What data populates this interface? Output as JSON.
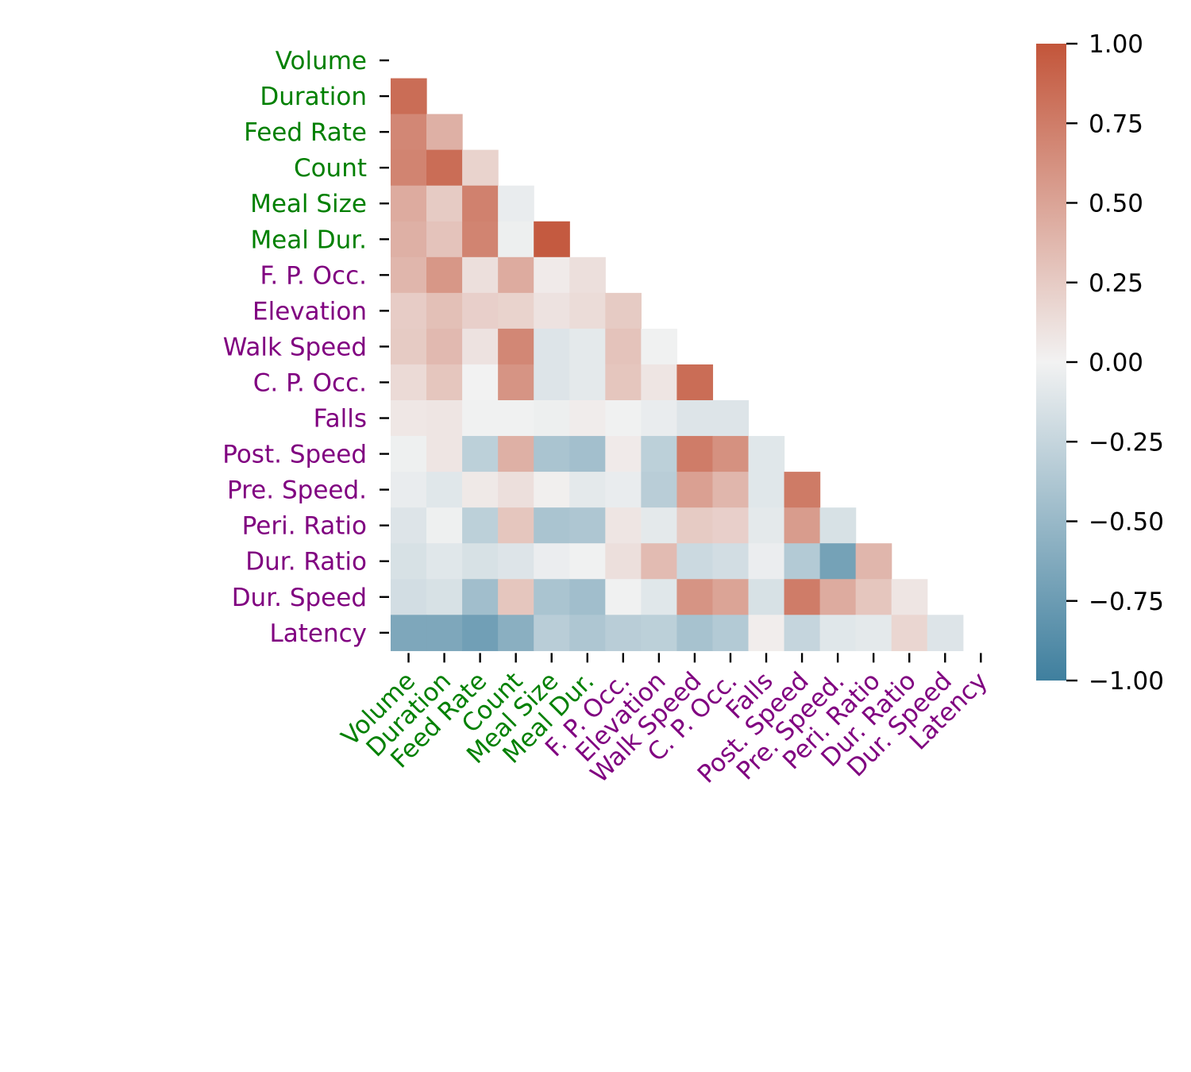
{
  "chart_data": {
    "type": "heatmap",
    "title": "",
    "xlabel": "",
    "ylabel": "",
    "variables": [
      "Volume",
      "Duration",
      "Feed Rate",
      "Count",
      "Meal Size",
      "Meal Dur.",
      "F. P. Occ.",
      "Elevation",
      "Walk Speed",
      "C. P. Occ.",
      "Falls",
      "Post. Speed",
      "Pre. Speed.",
      "Peri. Ratio",
      "Dur. Ratio",
      "Dur. Speed",
      "Latency"
    ],
    "label_groups": [
      "green",
      "green",
      "green",
      "green",
      "green",
      "green",
      "purple",
      "purple",
      "purple",
      "purple",
      "purple",
      "purple",
      "purple",
      "purple",
      "purple",
      "purple",
      "purple"
    ],
    "group_colors": {
      "green": "#008000",
      "purple": "#800080"
    },
    "mask": "upper triangle including diagonal",
    "matrix": [
      [],
      [
        0.85
      ],
      [
        0.68,
        0.42
      ],
      [
        0.7,
        0.85,
        0.2
      ],
      [
        0.45,
        0.25,
        0.72,
        -0.05
      ],
      [
        0.42,
        0.3,
        0.7,
        -0.03,
        0.97
      ],
      [
        0.38,
        0.58,
        0.12,
        0.45,
        0.05,
        0.12
      ],
      [
        0.24,
        0.32,
        0.22,
        0.2,
        0.1,
        0.14,
        0.25
      ],
      [
        0.25,
        0.36,
        0.1,
        0.68,
        -0.12,
        -0.08,
        0.3,
        -0.01
      ],
      [
        0.15,
        0.28,
        0.0,
        0.6,
        -0.12,
        -0.08,
        0.28,
        0.08,
        0.85
      ],
      [
        0.07,
        0.08,
        -0.01,
        -0.01,
        -0.03,
        0.04,
        -0.01,
        -0.05,
        -0.12,
        -0.12
      ],
      [
        -0.02,
        0.08,
        -0.3,
        0.42,
        -0.4,
        -0.44,
        0.05,
        -0.3,
        0.75,
        0.62,
        -0.1
      ],
      [
        -0.05,
        -0.1,
        0.06,
        0.12,
        0.02,
        -0.08,
        -0.05,
        -0.32,
        0.52,
        0.38,
        -0.1,
        0.76
      ],
      [
        -0.12,
        -0.02,
        -0.3,
        0.28,
        -0.4,
        -0.38,
        0.08,
        -0.08,
        0.25,
        0.22,
        -0.08,
        0.55,
        -0.15
      ],
      [
        -0.15,
        -0.1,
        -0.15,
        -0.12,
        -0.04,
        -0.01,
        0.12,
        0.35,
        -0.22,
        -0.18,
        -0.04,
        -0.35,
        -0.7,
        0.38
      ],
      [
        -0.18,
        -0.15,
        -0.45,
        0.28,
        -0.4,
        -0.45,
        -0.01,
        -0.1,
        0.6,
        0.5,
        -0.15,
        0.75,
        0.45,
        0.28,
        0.08
      ],
      [
        -0.65,
        -0.65,
        -0.72,
        -0.58,
        -0.32,
        -0.38,
        -0.32,
        -0.3,
        -0.42,
        -0.35,
        0.03,
        -0.25,
        -0.1,
        -0.08,
        0.18,
        -0.12
      ]
    ],
    "colorbar": {
      "min": -1.0,
      "max": 1.0,
      "ticks": [
        1.0,
        0.75,
        0.5,
        0.25,
        0.0,
        -0.25,
        -0.5,
        -0.75,
        -1.0
      ],
      "tick_labels": [
        "1.00",
        "0.75",
        "0.50",
        "0.25",
        "0.00",
        "−0.25",
        "−0.50",
        "−0.75",
        "−1.00"
      ],
      "colors": {
        "negative_end": "#3f7f9e",
        "neutral": "#f2f2f2",
        "positive_end": "#c3553a"
      }
    },
    "grid": false,
    "legend": "colorbar right"
  }
}
